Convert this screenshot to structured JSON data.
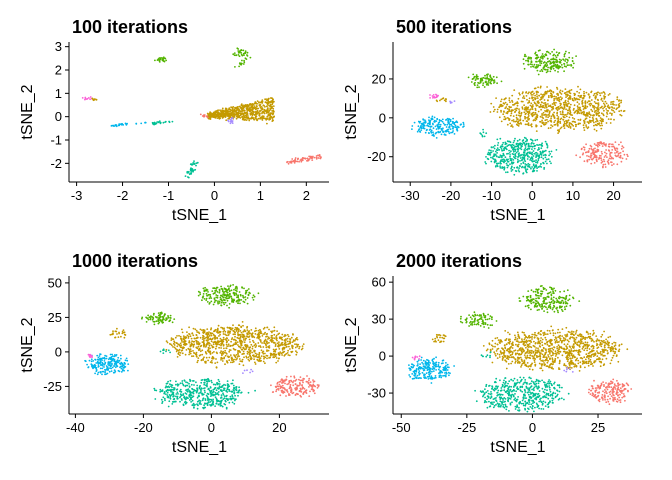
{
  "chart_data": [
    {
      "type": "scatter",
      "title": "100 iterations",
      "xlabel": "tSNE_1",
      "ylabel": "tSNE_2",
      "xlim": [
        -3.1,
        2.45
      ],
      "ylim": [
        -2.8,
        3.2
      ],
      "xticks": [
        -3,
        -2,
        -1,
        0,
        1,
        2
      ],
      "yticks": [
        -2,
        -1,
        0,
        1,
        2,
        3
      ],
      "grid": false,
      "clusters": [
        {
          "color": "#F8766D",
          "shape": "line",
          "x": [
            1.55,
            2.3
          ],
          "y": [
            -1.95,
            -1.7
          ],
          "n": 70,
          "spread": 0.06
        },
        {
          "color": "#C49A00",
          "shape": "wedge",
          "x": [
            -0.15,
            1.3
          ],
          "y": [
            -0.4,
            0.85
          ],
          "n": 700,
          "spread": 0.05
        },
        {
          "color": "#53B400",
          "shape": "blob",
          "x": [
            0.45,
            0.7
          ],
          "y": [
            2.55,
            2.85
          ],
          "n": 30,
          "spread": 0.05
        },
        {
          "color": "#53B400",
          "shape": "line",
          "x": [
            0.5,
            0.75
          ],
          "y": [
            2.1,
            2.55
          ],
          "n": 15,
          "spread": 0.03
        },
        {
          "color": "#53B400",
          "shape": "blob",
          "x": [
            -1.25,
            -1.05
          ],
          "y": [
            2.35,
            2.55
          ],
          "n": 25,
          "spread": 0.03
        },
        {
          "color": "#00C094",
          "shape": "line",
          "x": [
            -0.6,
            -0.4
          ],
          "y": [
            -2.6,
            -1.95
          ],
          "n": 35,
          "spread": 0.04
        },
        {
          "color": "#00C094",
          "shape": "line",
          "x": [
            -1.35,
            -0.9
          ],
          "y": [
            -0.3,
            -0.2
          ],
          "n": 25,
          "spread": 0.03
        },
        {
          "color": "#00B6EB",
          "shape": "line",
          "x": [
            -2.25,
            -1.9
          ],
          "y": [
            -0.4,
            -0.3
          ],
          "n": 25,
          "spread": 0.02
        },
        {
          "color": "#00B6EB",
          "shape": "line",
          "x": [
            -1.7,
            -1.4
          ],
          "y": [
            -0.3,
            -0.25
          ],
          "n": 6,
          "spread": 0.02
        },
        {
          "color": "#A58AFF",
          "shape": "blob",
          "x": [
            0.25,
            0.4
          ],
          "y": [
            -0.3,
            -0.05
          ],
          "n": 15,
          "spread": 0.03
        },
        {
          "color": "#FB61D7",
          "shape": "blob",
          "x": [
            -2.85,
            -2.65
          ],
          "y": [
            0.7,
            0.85
          ],
          "n": 10,
          "spread": 0.03
        },
        {
          "color": "#C49A00",
          "shape": "blob",
          "x": [
            -2.7,
            -2.55
          ],
          "y": [
            0.7,
            0.8
          ],
          "n": 8,
          "spread": 0.02
        },
        {
          "color": "#F8766D",
          "shape": "blob",
          "x": [
            -0.3,
            -0.1
          ],
          "y": [
            -0.05,
            0.1
          ],
          "n": 8,
          "spread": 0.02
        }
      ]
    },
    {
      "type": "scatter",
      "title": "500 iterations",
      "xlabel": "tSNE_1",
      "ylabel": "tSNE_2",
      "xlim": [
        -33.5,
        26.5
      ],
      "ylim": [
        -33,
        39
      ],
      "xticks": [
        -30,
        -20,
        -10,
        0,
        10,
        20
      ],
      "yticks": [
        -20,
        0,
        20
      ],
      "grid": false,
      "clusters": [
        {
          "color": "#C49A00",
          "shape": "blob",
          "x": [
            -9,
            22
          ],
          "y": [
            -6,
            15
          ],
          "n": 900,
          "spread": 1.2
        },
        {
          "color": "#00C094",
          "shape": "blob",
          "x": [
            -11,
            5
          ],
          "y": [
            -28,
            -11
          ],
          "n": 450,
          "spread": 1.0
        },
        {
          "color": "#53B400",
          "shape": "blob",
          "x": [
            -2,
            10
          ],
          "y": [
            24,
            34
          ],
          "n": 200,
          "spread": 0.9
        },
        {
          "color": "#53B400",
          "shape": "blob",
          "x": [
            -15,
            -9
          ],
          "y": [
            16,
            22
          ],
          "n": 80,
          "spread": 0.6
        },
        {
          "color": "#00B6EB",
          "shape": "blob",
          "x": [
            -29,
            -17
          ],
          "y": [
            -9,
            0
          ],
          "n": 200,
          "spread": 0.8
        },
        {
          "color": "#F8766D",
          "shape": "blob",
          "x": [
            12,
            23
          ],
          "y": [
            -25,
            -12
          ],
          "n": 180,
          "spread": 0.8
        },
        {
          "color": "#FB61D7",
          "shape": "blob",
          "x": [
            -25,
            -23
          ],
          "y": [
            10,
            12
          ],
          "n": 15,
          "spread": 0.3
        },
        {
          "color": "#C49A00",
          "shape": "blob",
          "x": [
            -24,
            -21
          ],
          "y": [
            8,
            10
          ],
          "n": 10,
          "spread": 0.3
        },
        {
          "color": "#A58AFF",
          "shape": "blob",
          "x": [
            -21,
            -19
          ],
          "y": [
            7,
            9
          ],
          "n": 6,
          "spread": 0.3
        },
        {
          "color": "#00C094",
          "shape": "blob",
          "x": [
            -14,
            -11
          ],
          "y": [
            -10,
            -6
          ],
          "n": 8,
          "spread": 0.4
        }
      ]
    },
    {
      "type": "scatter",
      "title": "1000 iterations",
      "xlabel": "tSNE_1",
      "ylabel": "tSNE_2",
      "xlim": [
        -41,
        34
      ],
      "ylim": [
        -45,
        55
      ],
      "xticks": [
        -40,
        -20,
        0,
        20
      ],
      "yticks": [
        -25,
        0,
        25,
        50
      ],
      "grid": false,
      "clusters": [
        {
          "color": "#C49A00",
          "shape": "blob",
          "x": [
            -12,
            26
          ],
          "y": [
            -8,
            18
          ],
          "n": 950,
          "spread": 1.5
        },
        {
          "color": "#00C094",
          "shape": "blob",
          "x": [
            -16,
            9
          ],
          "y": [
            -40,
            -20
          ],
          "n": 470,
          "spread": 1.2
        },
        {
          "color": "#53B400",
          "shape": "blob",
          "x": [
            -3,
            12
          ],
          "y": [
            34,
            48
          ],
          "n": 210,
          "spread": 1.0
        },
        {
          "color": "#53B400",
          "shape": "blob",
          "x": [
            -19,
            -11
          ],
          "y": [
            20,
            28
          ],
          "n": 80,
          "spread": 0.8
        },
        {
          "color": "#00B6EB",
          "shape": "blob",
          "x": [
            -36,
            -25
          ],
          "y": [
            -16,
            -2
          ],
          "n": 210,
          "spread": 1.0
        },
        {
          "color": "#F8766D",
          "shape": "blob",
          "x": [
            18,
            31
          ],
          "y": [
            -32,
            -18
          ],
          "n": 180,
          "spread": 1.0
        },
        {
          "color": "#C49A00",
          "shape": "blob",
          "x": [
            -30,
            -25
          ],
          "y": [
            10,
            16
          ],
          "n": 25,
          "spread": 0.5
        },
        {
          "color": "#FB61D7",
          "shape": "blob",
          "x": [
            -37,
            -35
          ],
          "y": [
            -4,
            -2
          ],
          "n": 10,
          "spread": 0.3
        },
        {
          "color": "#A58AFF",
          "shape": "blob",
          "x": [
            9,
            12
          ],
          "y": [
            -16,
            -12
          ],
          "n": 6,
          "spread": 0.4
        },
        {
          "color": "#00C094",
          "shape": "blob",
          "x": [
            -16,
            -12
          ],
          "y": [
            -2,
            2
          ],
          "n": 8,
          "spread": 0.4
        }
      ]
    },
    {
      "type": "scatter",
      "title": "2000 iterations",
      "xlabel": "tSNE_1",
      "ylabel": "tSNE_2",
      "xlim": [
        -52,
        41
      ],
      "ylim": [
        -47,
        65
      ],
      "xticks": [
        -50,
        -25,
        0,
        25
      ],
      "yticks": [
        -30,
        0,
        30,
        60
      ],
      "grid": false,
      "clusters": [
        {
          "color": "#C49A00",
          "shape": "blob",
          "x": [
            -16,
            33
          ],
          "y": [
            -10,
            20
          ],
          "n": 950,
          "spread": 2.0
        },
        {
          "color": "#00C094",
          "shape": "blob",
          "x": [
            -20,
            11
          ],
          "y": [
            -44,
            -18
          ],
          "n": 470,
          "spread": 1.5
        },
        {
          "color": "#53B400",
          "shape": "blob",
          "x": [
            -4,
            16
          ],
          "y": [
            36,
            56
          ],
          "n": 210,
          "spread": 1.3
        },
        {
          "color": "#53B400",
          "shape": "blob",
          "x": [
            -26,
            -15
          ],
          "y": [
            24,
            34
          ],
          "n": 80,
          "spread": 1.0
        },
        {
          "color": "#00B6EB",
          "shape": "blob",
          "x": [
            -47,
            -32
          ],
          "y": [
            -20,
            -2
          ],
          "n": 210,
          "spread": 1.2
        },
        {
          "color": "#F8766D",
          "shape": "blob",
          "x": [
            22,
            37
          ],
          "y": [
            -38,
            -20
          ],
          "n": 180,
          "spread": 1.2
        },
        {
          "color": "#C49A00",
          "shape": "blob",
          "x": [
            -38,
            -32
          ],
          "y": [
            11,
            18
          ],
          "n": 25,
          "spread": 0.6
        },
        {
          "color": "#FB61D7",
          "shape": "blob",
          "x": [
            -46,
            -43
          ],
          "y": [
            -3,
            0
          ],
          "n": 10,
          "spread": 0.4
        },
        {
          "color": "#A58AFF",
          "shape": "blob",
          "x": [
            12,
            16
          ],
          "y": [
            -14,
            -10
          ],
          "n": 6,
          "spread": 0.5
        },
        {
          "color": "#00C094",
          "shape": "blob",
          "x": [
            -20,
            -15
          ],
          "y": [
            -2,
            3
          ],
          "n": 8,
          "spread": 0.5
        }
      ]
    }
  ]
}
